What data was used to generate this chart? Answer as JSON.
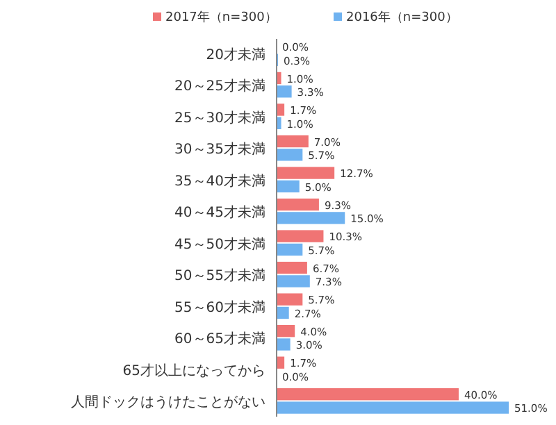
{
  "chart_data": {
    "type": "bar",
    "orientation": "horizontal",
    "legend": "top",
    "categories": [
      "20才未満",
      "20～25才未満",
      "25～30才未満",
      "30～35才未満",
      "35～40才未満",
      "40～45才未満",
      "45～50才未満",
      "50～55才未満",
      "55～60才未満",
      "60～65才未満",
      "65才以上になってから",
      "人間ドックはうけたことがない"
    ],
    "xlim": [
      0,
      51
    ],
    "tick_labels": "y",
    "series": [
      {
        "name": "2017年（n=300）",
        "color": "#f07474",
        "values": [
          0,
          1,
          1.7,
          7,
          12.7,
          9.3,
          10.3,
          6.7,
          5.7,
          4,
          1.7,
          40
        ],
        "value_labels": [
          "0.0%",
          "1.0%",
          "1.7%",
          "7.0%",
          "12.7%",
          "9.3%",
          "10.3%",
          "6.7%",
          "5.7%",
          "4.0%",
          "1.7%",
          "40.0%"
        ]
      },
      {
        "name": "2016年（n=300）",
        "color": "#6fb2f0",
        "values": [
          0.3,
          3.3,
          1,
          5.7,
          5,
          15,
          5.7,
          7.3,
          2.7,
          3,
          0,
          51
        ],
        "value_labels": [
          "0.3%",
          "3.3%",
          "1.0%",
          "5.7%",
          "5.0%",
          "15.0%",
          "5.7%",
          "7.3%",
          "2.7%",
          "3.0%",
          "0.0%",
          "51.0%"
        ]
      }
    ]
  }
}
